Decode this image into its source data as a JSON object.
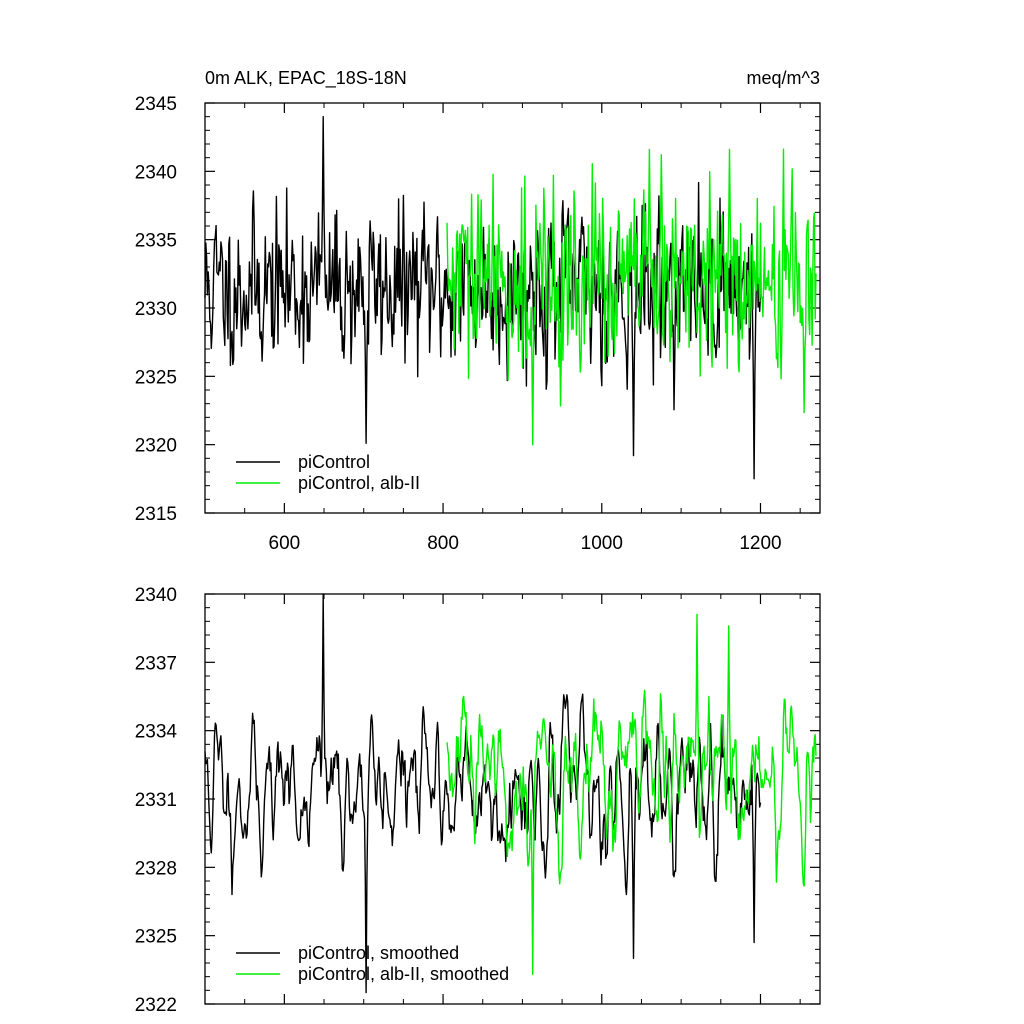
{
  "chart_data": [
    {
      "type": "line",
      "title": "0m ALK, EPAC_18S-18N",
      "units": "meq/m^3",
      "xlim": [
        500,
        1275
      ],
      "ylim": [
        2315,
        2345
      ],
      "xticks": [
        600,
        800,
        1000,
        1200
      ],
      "yticks": [
        2315,
        2320,
        2325,
        2330,
        2335,
        2340,
        2345
      ],
      "legend_position": "bottom-left",
      "series": [
        {
          "name": "piControl",
          "color": "#000000",
          "x_start": 500,
          "x_end": 1200,
          "seed": 11,
          "mean": 2331.5,
          "noise": 3.6,
          "smooth": false,
          "peaks": [
            [
              649,
              2344.0
            ],
            [
              703,
              2320.1
            ],
            [
              1040,
              2319.2
            ],
            [
              1192,
              2317.5
            ]
          ]
        },
        {
          "name": "piControl, alb-II",
          "color": "#00ee00",
          "x_start": 805,
          "x_end": 1270,
          "seed": 29,
          "mean": 2331.8,
          "noise": 4.2,
          "smooth": false,
          "peaks": [
            [
              1161,
              2341.6
            ],
            [
              1060,
              2341.6
            ],
            [
              913,
              2320.0
            ]
          ]
        }
      ]
    },
    {
      "type": "line",
      "title": "",
      "units": "",
      "xlim": [
        500,
        1275
      ],
      "ylim": [
        2322,
        2340
      ],
      "xticks": [
        600,
        800,
        1000,
        1200
      ],
      "yticks": [
        2322,
        2325,
        2328,
        2331,
        2334,
        2337,
        2340
      ],
      "legend_position": "bottom-left",
      "series": [
        {
          "name": "piControl, smoothed",
          "color": "#000000",
          "x_start": 500,
          "x_end": 1200,
          "seed": 11,
          "mean": 2331.5,
          "noise": 3.6,
          "smooth": true,
          "peaks": [
            [
              649,
              2340.0
            ],
            [
              703,
              2322.5
            ],
            [
              1040,
              2324.0
            ],
            [
              1192,
              2324.7
            ]
          ]
        },
        {
          "name": "piControl, alb-II, smoothed",
          "color": "#00ee00",
          "x_start": 805,
          "x_end": 1270,
          "seed": 29,
          "mean": 2331.8,
          "noise": 4.2,
          "smooth": true,
          "peaks": [
            [
              1120,
              2339.1
            ],
            [
              1160,
              2338.6
            ],
            [
              913,
              2323.3
            ]
          ]
        }
      ]
    }
  ]
}
